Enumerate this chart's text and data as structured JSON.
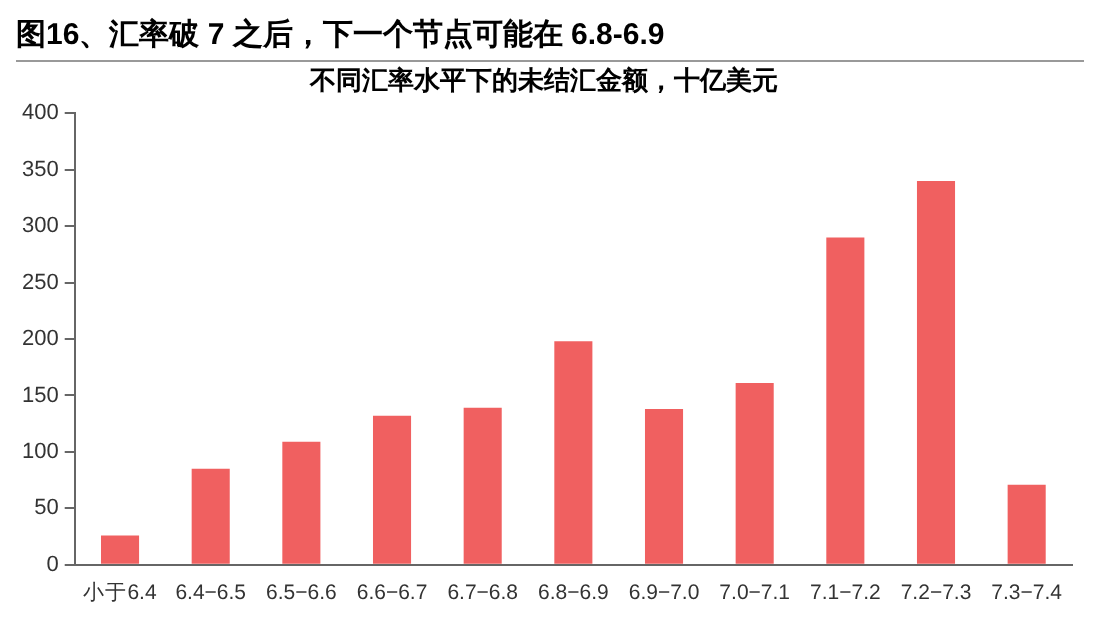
{
  "chart_data": {
    "type": "bar",
    "title": "图16、汇率破 7 之后，下一个节点可能在 6.8-6.9",
    "subtitle": "不同汇率水平下的未结汇金额，十亿美元",
    "categories": [
      "小于6.4",
      "6.4−6.5",
      "6.5−6.6",
      "6.6−6.7",
      "6.7−6.8",
      "6.8−6.9",
      "6.9−7.0",
      "7.0−7.1",
      "7.1−7.2",
      "7.2−7.3",
      "7.3−7.4"
    ],
    "values": [
      26,
      85,
      109,
      132,
      139,
      198,
      138,
      161,
      290,
      340,
      71
    ],
    "color": "#f06060",
    "ylim": [
      0,
      400
    ],
    "yticks": [
      0,
      50,
      100,
      150,
      200,
      250,
      300,
      350,
      400
    ],
    "grid": false,
    "legend": false
  }
}
